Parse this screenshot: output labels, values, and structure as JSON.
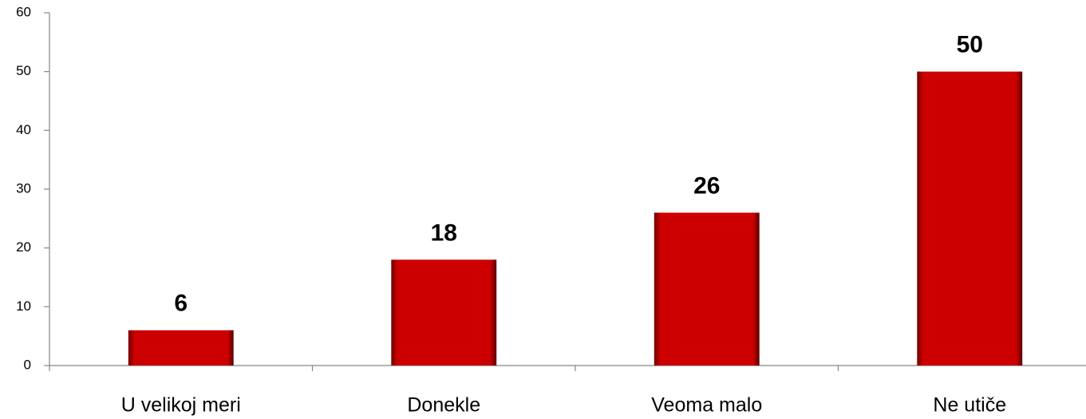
{
  "chart_data": {
    "type": "bar",
    "categories": [
      "U velikoj meri",
      "Donekle",
      "Veoma malo",
      "Ne utiče"
    ],
    "values": [
      6,
      18,
      26,
      50
    ],
    "color": "#cc0000",
    "ylim": [
      0,
      60
    ],
    "yticks": [
      0,
      10,
      20,
      30,
      40,
      50,
      60
    ],
    "grid": false
  }
}
